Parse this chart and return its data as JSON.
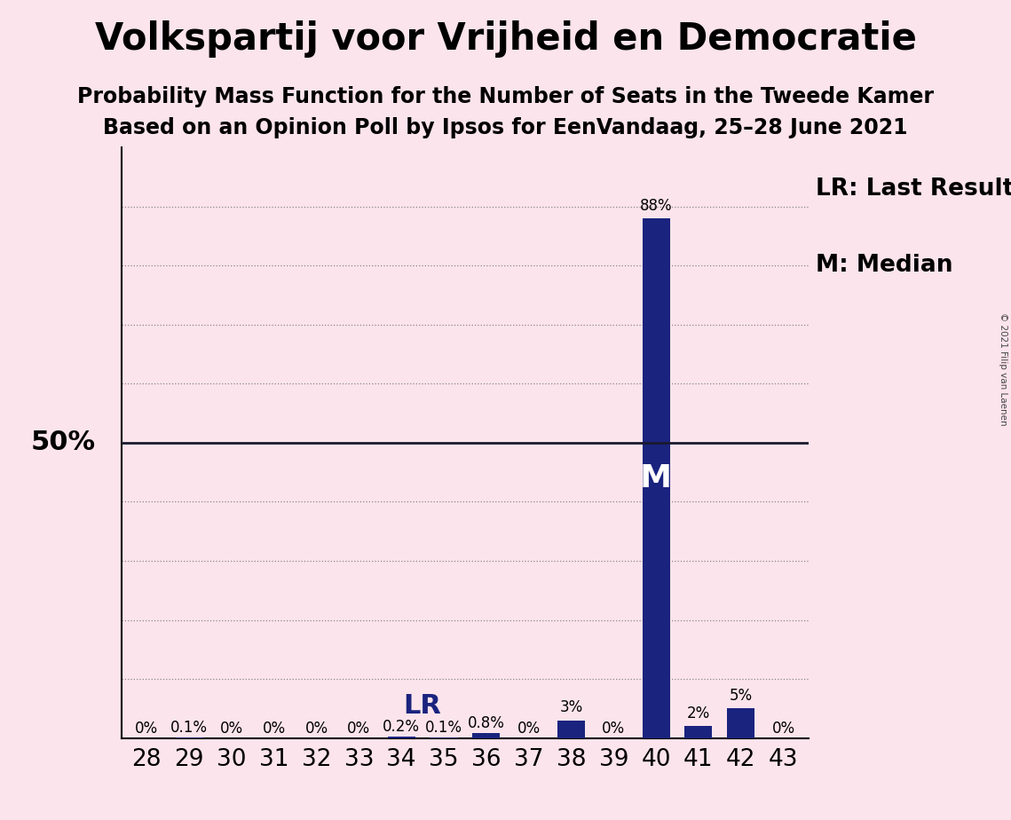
{
  "title": "Volkspartij voor Vrijheid en Democratie",
  "subtitle1": "Probability Mass Function for the Number of Seats in the Tweede Kamer",
  "subtitle2": "Based on an Opinion Poll by Ipsos for EenVandaag, 25–28 June 2021",
  "copyright": "© 2021 Filip van Laenen",
  "categories": [
    28,
    29,
    30,
    31,
    32,
    33,
    34,
    35,
    36,
    37,
    38,
    39,
    40,
    41,
    42,
    43
  ],
  "values": [
    0.0,
    0.001,
    0.0,
    0.0,
    0.0,
    0.0,
    0.002,
    0.001,
    0.008,
    0.0,
    0.03,
    0.0,
    0.88,
    0.02,
    0.05,
    0.0
  ],
  "labels": [
    "0%",
    "0.1%",
    "0%",
    "0%",
    "0%",
    "0%",
    "0.2%",
    "0.1%",
    "0.8%",
    "0%",
    "3%",
    "0%",
    "88%",
    "2%",
    "5%",
    "0%"
  ],
  "bar_color": "#1a237e",
  "background_color": "#fce4ec",
  "fifty_line_color": "#1a1a2e",
  "grid_color": "#888888",
  "LR_seat": 34,
  "median_seat": 40,
  "legend_LR": "LR: Last Result",
  "legend_M": "M: Median",
  "ylabel_50": "50%",
  "ylim": [
    0,
    1.0
  ],
  "title_fontsize": 30,
  "subtitle_fontsize": 17,
  "label_fontsize": 12,
  "axis_tick_fontsize": 19,
  "annotation_fontsize": 18,
  "legend_fontsize": 19
}
